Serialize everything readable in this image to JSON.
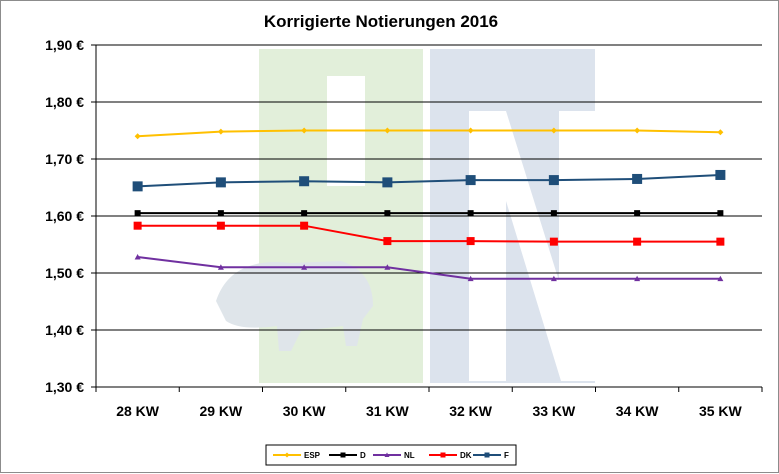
{
  "chart_data": {
    "type": "line",
    "title": "Korrigierte Notierungen 2016",
    "categories": [
      "28 KW",
      "29 KW",
      "30 KW",
      "31 KW",
      "32 KW",
      "33 KW",
      "34 KW",
      "35 KW"
    ],
    "ylim": [
      1.3,
      1.9
    ],
    "yticks": [
      "1,30 €",
      "1,40 €",
      "1,50 €",
      "1,60 €",
      "1,70 €",
      "1,80 €",
      "1,90 €"
    ],
    "ytick_values": [
      1.3,
      1.4,
      1.5,
      1.6,
      1.7,
      1.8,
      1.9
    ],
    "grid": true,
    "legend_position": "bottom",
    "watermark": "ISN logo",
    "series": [
      {
        "name": "ESP",
        "color": "#ffc000",
        "marker": "diamond",
        "values": [
          1.74,
          1.748,
          1.75,
          1.75,
          1.75,
          1.75,
          1.75,
          1.747
        ]
      },
      {
        "name": "D",
        "color": "#000000",
        "marker": "square",
        "values": [
          1.605,
          1.605,
          1.605,
          1.605,
          1.605,
          1.605,
          1.605,
          1.605
        ]
      },
      {
        "name": "NL",
        "color": "#7030a0",
        "marker": "triangle",
        "values": [
          1.528,
          1.51,
          1.51,
          1.51,
          1.49,
          1.49,
          1.49,
          1.49
        ]
      },
      {
        "name": "DK",
        "color": "#ff0000",
        "marker": "square",
        "values": [
          1.583,
          1.583,
          1.583,
          1.556,
          1.556,
          1.555,
          1.555,
          1.555
        ]
      },
      {
        "name": "F",
        "color": "#1f4e79",
        "marker": "square",
        "values": [
          1.652,
          1.659,
          1.661,
          1.659,
          1.663,
          1.663,
          1.665,
          1.672
        ]
      }
    ]
  }
}
